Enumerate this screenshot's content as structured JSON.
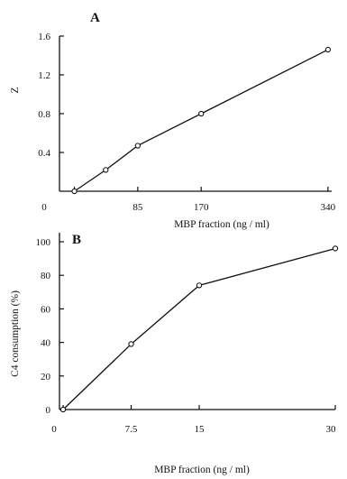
{
  "chart_data": [
    {
      "type": "line",
      "panel": "A",
      "x": [
        0,
        42,
        85,
        170,
        340
      ],
      "y": [
        0,
        0.22,
        0.47,
        0.8,
        1.46
      ],
      "xlabel": "MBP fraction (ng / ml)",
      "ylabel": "Z",
      "xticks": [
        "0",
        "85",
        "170",
        "340"
      ],
      "xtick_values": [
        0,
        85,
        170,
        340
      ],
      "yticks": [
        "0.4",
        "0.8",
        "1.2",
        "1.6"
      ],
      "ytick_values": [
        0.4,
        0.8,
        1.2,
        1.6
      ],
      "xlim": [
        -20,
        345
      ],
      "ylim": [
        0,
        1.6
      ],
      "grid": false
    },
    {
      "type": "line",
      "panel": "B",
      "x": [
        0,
        7.5,
        15,
        30
      ],
      "y": [
        0,
        39,
        74,
        96
      ],
      "xlabel": "MBP fraction (ng / ml)",
      "ylabel": "C4 consumption (%)",
      "xticks": [
        "0",
        "7.5",
        "15",
        "30"
      ],
      "xtick_values": [
        0,
        7.5,
        15,
        30
      ],
      "yticks": [
        "0",
        "20",
        "40",
        "60",
        "80",
        "100"
      ],
      "ytick_values": [
        0,
        20,
        40,
        60,
        80,
        100
      ],
      "xlim": [
        -0.4,
        30
      ],
      "ylim": [
        0,
        100
      ],
      "grid": false
    }
  ]
}
